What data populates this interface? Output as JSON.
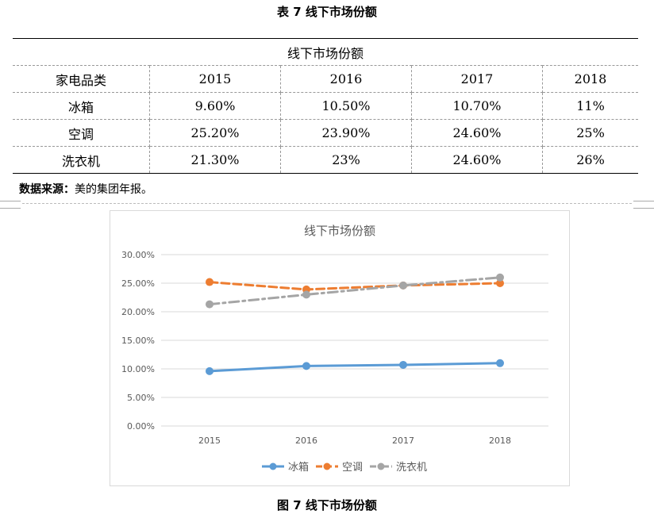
{
  "table": {
    "caption": "表 7  线下市场份额",
    "header_span": "线下市场份额",
    "columns": [
      "家电品类",
      "2015",
      "2016",
      "2017",
      "2018"
    ],
    "rows": [
      [
        "冰箱",
        "9.60%",
        "10.50%",
        "10.70%",
        "11%"
      ],
      [
        "空调",
        "25.20%",
        "23.90%",
        "24.60%",
        "25%"
      ],
      [
        "洗衣机",
        "21.30%",
        "23%",
        "24.60%",
        "26%"
      ]
    ]
  },
  "source": {
    "label": "数据来源：",
    "text": "美的集团年报。"
  },
  "figure": {
    "caption": "图 7  线下市场份额"
  },
  "chart_data": {
    "type": "line",
    "title": "线下市场份额",
    "xlabel": "",
    "ylabel": "",
    "categories": [
      "2015",
      "2016",
      "2017",
      "2018"
    ],
    "ylim": [
      0,
      30
    ],
    "yticks": [
      "0.00%",
      "5.00%",
      "10.00%",
      "15.00%",
      "20.00%",
      "25.00%",
      "30.00%"
    ],
    "grid": true,
    "legend": "bottom",
    "series": [
      {
        "name": "冰箱",
        "values": [
          9.6,
          10.5,
          10.7,
          11
        ],
        "color": "#5B9BD5",
        "style": "solid"
      },
      {
        "name": "空调",
        "values": [
          25.2,
          23.9,
          24.6,
          25
        ],
        "color": "#ED7D31",
        "style": "dashed"
      },
      {
        "name": "洗衣机",
        "values": [
          21.3,
          23,
          24.6,
          26
        ],
        "color": "#A5A5A5",
        "style": "dashdot"
      }
    ]
  }
}
